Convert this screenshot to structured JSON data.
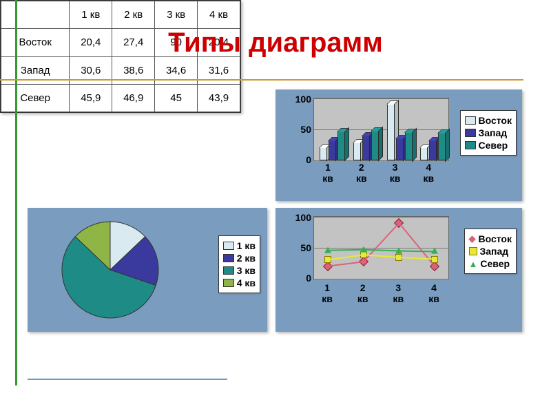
{
  "title": "Типы диаграмм",
  "colors": {
    "panel_bg": "#7a9cbf",
    "plot_bg": "#c3c3c3",
    "title": "#cc0000",
    "vline": "#339933",
    "hline": "#cc9933"
  },
  "table": {
    "columns": [
      "",
      "1 кв",
      "2 кв",
      "3 кв",
      "4 кв"
    ],
    "rows": [
      [
        "Восток",
        "20,4",
        "27,4",
        "90",
        "20,4"
      ],
      [
        "Запад",
        "30,6",
        "38,6",
        "34,6",
        "31,6"
      ],
      [
        "Север",
        "45,9",
        "46,9",
        "45",
        "43,9"
      ]
    ]
  },
  "bar_chart": {
    "type": "bar3d",
    "categories": [
      "1 кв",
      "2 кв",
      "3 кв",
      "4 кв"
    ],
    "series": [
      {
        "name": "Восток",
        "color": "#d9eaf0",
        "values": [
          20.4,
          27.4,
          90,
          20.4
        ]
      },
      {
        "name": "Запад",
        "color": "#3a3a9e",
        "values": [
          30.6,
          38.6,
          34.6,
          31.6
        ]
      },
      {
        "name": "Север",
        "color": "#1f8b87",
        "values": [
          45.9,
          46.9,
          45,
          43.9
        ]
      }
    ],
    "ylim": [
      0,
      100
    ],
    "yticks": [
      0,
      50,
      100
    ]
  },
  "pie_chart": {
    "type": "pie",
    "slices": [
      {
        "label": "1 кв",
        "value": 20.4,
        "color": "#d9eaf0"
      },
      {
        "label": "2 кв",
        "value": 27.4,
        "color": "#3a3a9e"
      },
      {
        "label": "3 кв",
        "value": 90,
        "color": "#1f8b87"
      },
      {
        "label": "4 кв",
        "value": 20.4,
        "color": "#8fb547"
      }
    ]
  },
  "line_chart": {
    "type": "line",
    "categories": [
      "1 кв",
      "2 кв",
      "3 кв",
      "4 кв"
    ],
    "series": [
      {
        "name": "Восток",
        "color": "#d9647a",
        "marker": "diamond",
        "values": [
          20.4,
          27.4,
          90,
          20.4
        ]
      },
      {
        "name": "Запад",
        "color": "#e8e83a",
        "marker": "square",
        "values": [
          30.6,
          38.6,
          34.6,
          31.6
        ]
      },
      {
        "name": "Север",
        "color": "#33b050",
        "marker": "triangle",
        "values": [
          45.9,
          46.9,
          45,
          43.9
        ]
      }
    ],
    "ylim": [
      0,
      100
    ],
    "yticks": [
      0,
      50,
      100
    ]
  }
}
